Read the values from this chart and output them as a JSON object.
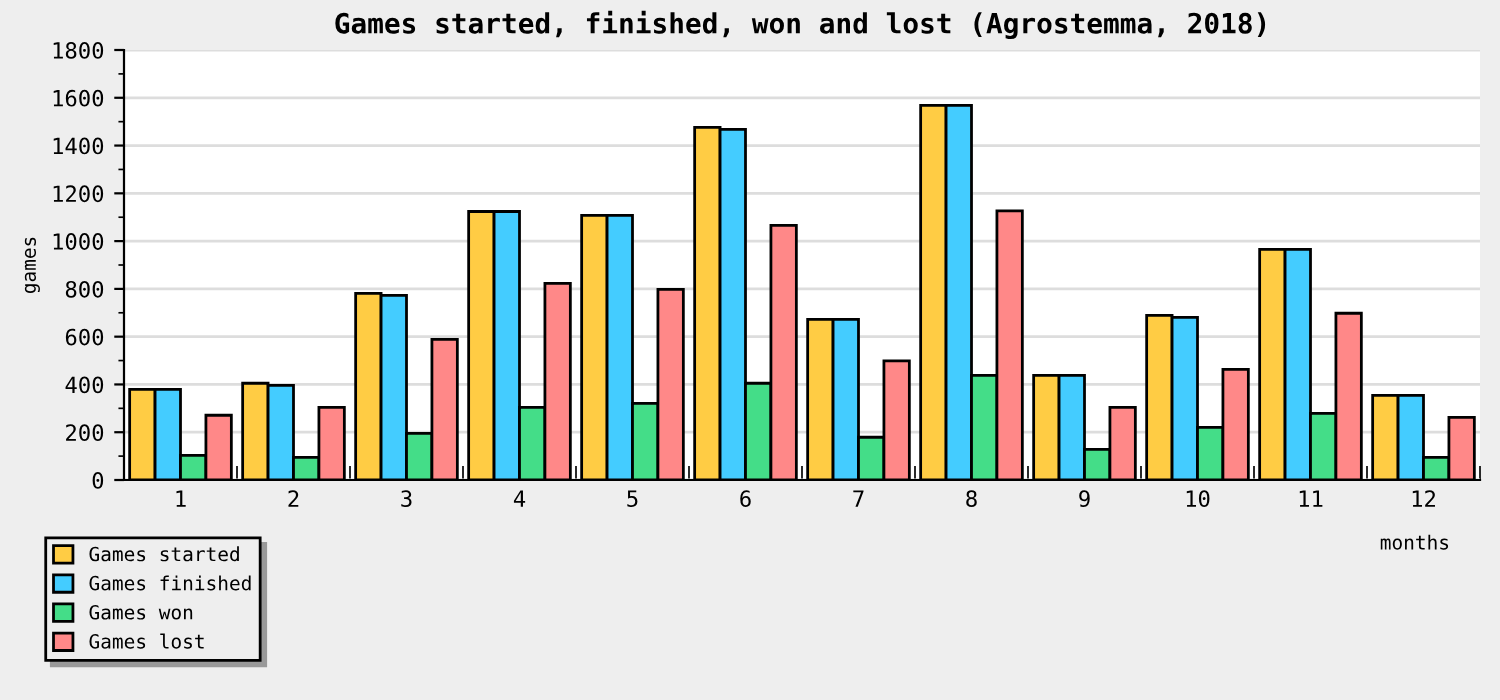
{
  "chart_data": {
    "type": "bar",
    "title": "Games started, finished, won and lost (Agrostemma, 2018)",
    "xlabel": "months",
    "ylabel": "games",
    "categories": [
      "1",
      "2",
      "3",
      "4",
      "5",
      "6",
      "7",
      "8",
      "9",
      "10",
      "11",
      "12"
    ],
    "series": [
      {
        "name": "Games started",
        "color": "#ffcc44",
        "values": [
          379,
          405,
          781,
          1124,
          1108,
          1476,
          672,
          1568,
          438,
          689,
          965,
          354
        ]
      },
      {
        "name": "Games finished",
        "color": "#44ccff",
        "values": [
          379,
          396,
          773,
          1124,
          1108,
          1468,
          672,
          1568,
          438,
          681,
          965,
          354
        ]
      },
      {
        "name": "Games won",
        "color": "#44dd88",
        "values": [
          103,
          95,
          195,
          304,
          321,
          405,
          179,
          438,
          128,
          220,
          279,
          95
        ]
      },
      {
        "name": "Games lost",
        "color": "#ff8888",
        "values": [
          271,
          304,
          589,
          823,
          798,
          1066,
          499,
          1127,
          304,
          463,
          698,
          262
        ]
      }
    ],
    "ylim": [
      0,
      1800
    ],
    "yticks": [
      0,
      200,
      400,
      600,
      800,
      1000,
      1200,
      1400,
      1600,
      1800
    ],
    "grid": "y",
    "legend": "bottom left"
  }
}
